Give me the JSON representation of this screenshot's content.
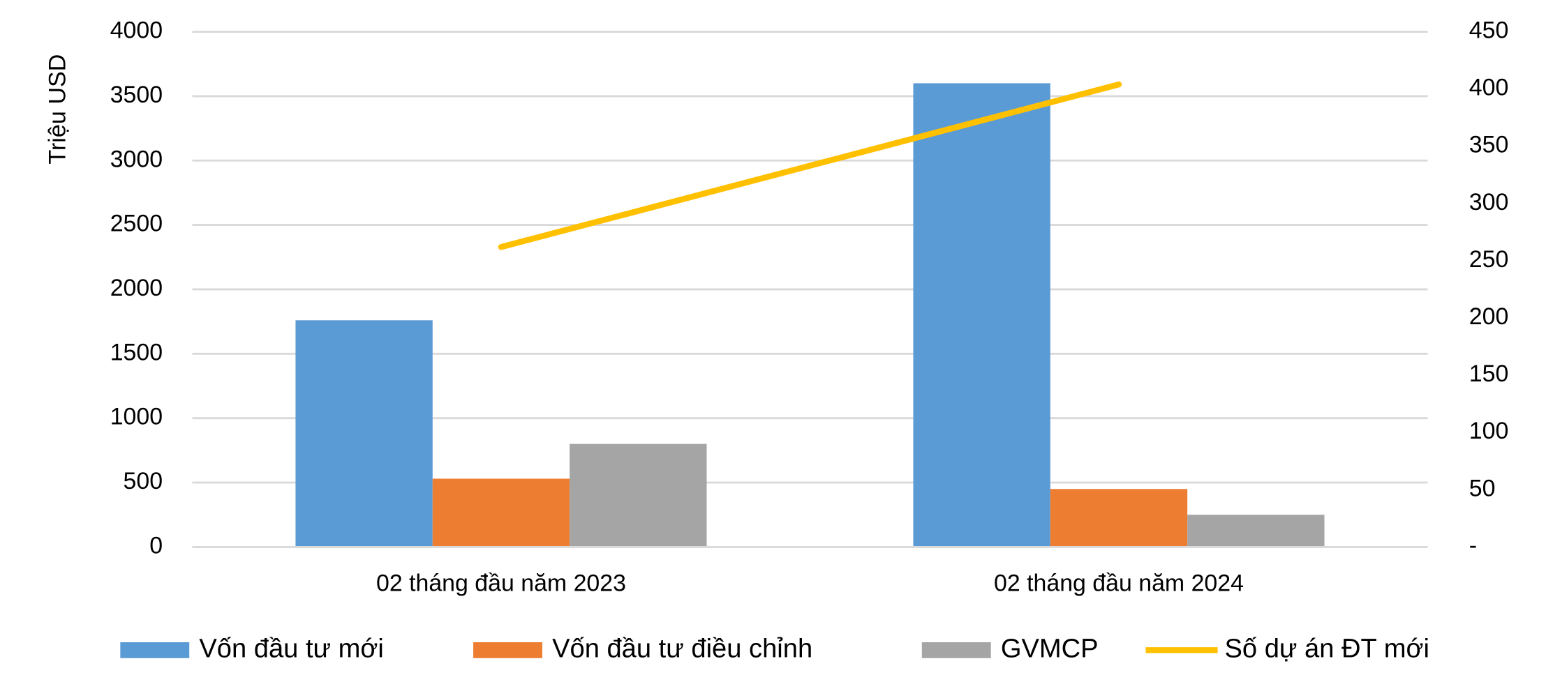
{
  "chart_data": {
    "type": "bar",
    "y_label": "Triệu USD",
    "categories": [
      "02 tháng đầu năm 2023",
      "02 tháng đầu năm 2024"
    ],
    "series": [
      {
        "name": "Vốn đầu tư mới",
        "color": "#5b9bd5",
        "values": [
          1760,
          3600
        ]
      },
      {
        "name": "Vốn đầu tư điều chỉnh",
        "color": "#ed7d31",
        "values": [
          530,
          450
        ]
      },
      {
        "name": "GVMCP",
        "color": "#a5a5a5",
        "values": [
          800,
          250
        ]
      },
      {
        "name": "Số dự án ĐT mới",
        "type": "line",
        "axis": "y2",
        "color": "#ffc000",
        "values": [
          262,
          404
        ]
      }
    ],
    "ylim": [
      0,
      4000
    ],
    "yticks": [
      0,
      500,
      1000,
      1500,
      2000,
      2500,
      3000,
      3500,
      4000
    ],
    "y2lim": [
      0,
      450
    ],
    "y2ticks": [
      {
        "value": 0,
        "label": "-"
      },
      50,
      100,
      150,
      200,
      250,
      300,
      350,
      400,
      450
    ],
    "grid": true,
    "legend": "bottom"
  }
}
